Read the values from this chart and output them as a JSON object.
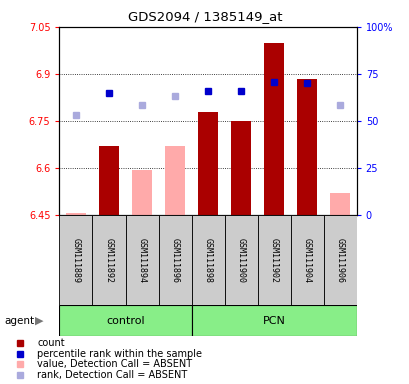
{
  "title": "GDS2094 / 1385149_at",
  "samples": [
    "GSM111889",
    "GSM111892",
    "GSM111894",
    "GSM111896",
    "GSM111898",
    "GSM111900",
    "GSM111902",
    "GSM111904",
    "GSM111906"
  ],
  "groups": {
    "control": [
      0,
      1,
      2,
      3
    ],
    "PCN": [
      4,
      5,
      6,
      7,
      8
    ]
  },
  "ylim_left": [
    6.45,
    7.05
  ],
  "ylim_right": [
    0,
    100
  ],
  "yticks_left": [
    6.45,
    6.6,
    6.75,
    6.9,
    7.05
  ],
  "ytick_labels_left": [
    "6.45",
    "6.6",
    "6.75",
    "6.9",
    "7.05"
  ],
  "yticks_right": [
    0,
    25,
    50,
    75,
    100
  ],
  "ytick_labels_right": [
    "0",
    "25",
    "50",
    "75",
    "100%"
  ],
  "grid_lines": [
    6.6,
    6.75,
    6.9
  ],
  "bars": {
    "0": {
      "value": 6.455,
      "absent": true
    },
    "1": {
      "value": 6.67,
      "absent": false
    },
    "2": {
      "value": 6.595,
      "absent": true
    },
    "3": {
      "value": 6.67,
      "absent": true
    },
    "4": {
      "value": 6.78,
      "absent": false
    },
    "5": {
      "value": 6.75,
      "absent": false
    },
    "6": {
      "value": 7.0,
      "absent": false
    },
    "7": {
      "value": 6.885,
      "absent": false
    },
    "8": {
      "value": 6.52,
      "absent": true
    }
  },
  "dots": {
    "0": {
      "value": 6.77,
      "absent": true
    },
    "1": {
      "value": 6.84,
      "absent": false
    },
    "2": {
      "value": 6.8,
      "absent": true
    },
    "3": {
      "value": 6.83,
      "absent": true
    },
    "4": {
      "value": 6.845,
      "absent": false
    },
    "5": {
      "value": 6.845,
      "absent": false
    },
    "6": {
      "value": 6.875,
      "absent": false
    },
    "7": {
      "value": 6.87,
      "absent": false
    },
    "8": {
      "value": 6.8,
      "absent": true
    }
  },
  "bar_color_present": "#aa0000",
  "bar_color_absent": "#ffaaaa",
  "dot_color_present": "#0000cc",
  "dot_color_absent": "#aaaadd",
  "bar_bottom": 6.45,
  "bar_width": 0.6,
  "group_control_label": "control",
  "group_pcn_label": "PCN",
  "agent_label": "agent",
  "group_color": "#88ee88",
  "sample_bg_color": "#cccccc",
  "legend_items": [
    {
      "label": "count",
      "color": "#aa0000"
    },
    {
      "label": "percentile rank within the sample",
      "color": "#0000cc"
    },
    {
      "label": "value, Detection Call = ABSENT",
      "color": "#ffaaaa"
    },
    {
      "label": "rank, Detection Call = ABSENT",
      "color": "#aaaadd"
    }
  ]
}
